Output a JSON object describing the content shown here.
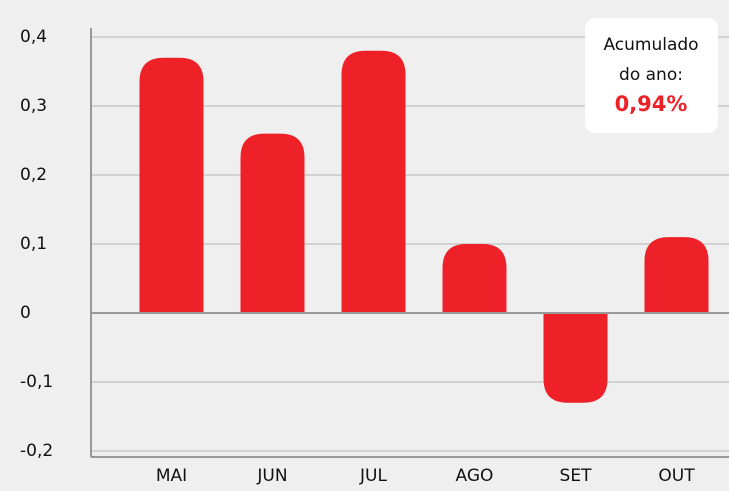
{
  "chart_data": {
    "type": "bar",
    "categories": [
      "MAI",
      "JUN",
      "JUL",
      "AGO",
      "SET",
      "OUT"
    ],
    "values": [
      0.37,
      0.26,
      0.38,
      0.1,
      -0.13,
      0.11
    ],
    "color": "#ee2129",
    "ylim": [
      -0.2,
      0.4
    ],
    "yticks": [
      {
        "value": -0.2,
        "label": "-0,2"
      },
      {
        "value": -0.1,
        "label": "-0,1"
      },
      0,
      {
        "value": 0.1,
        "label": "0,1"
      },
      {
        "value": 0.2,
        "label": "0,2"
      },
      {
        "value": 0.3,
        "label": "0,3"
      },
      {
        "value": 0.4,
        "label": "0,4"
      }
    ],
    "grid": true,
    "annotation": {
      "lines": [
        "Acumulado",
        "do ano:"
      ],
      "value": "0,94%"
    }
  }
}
